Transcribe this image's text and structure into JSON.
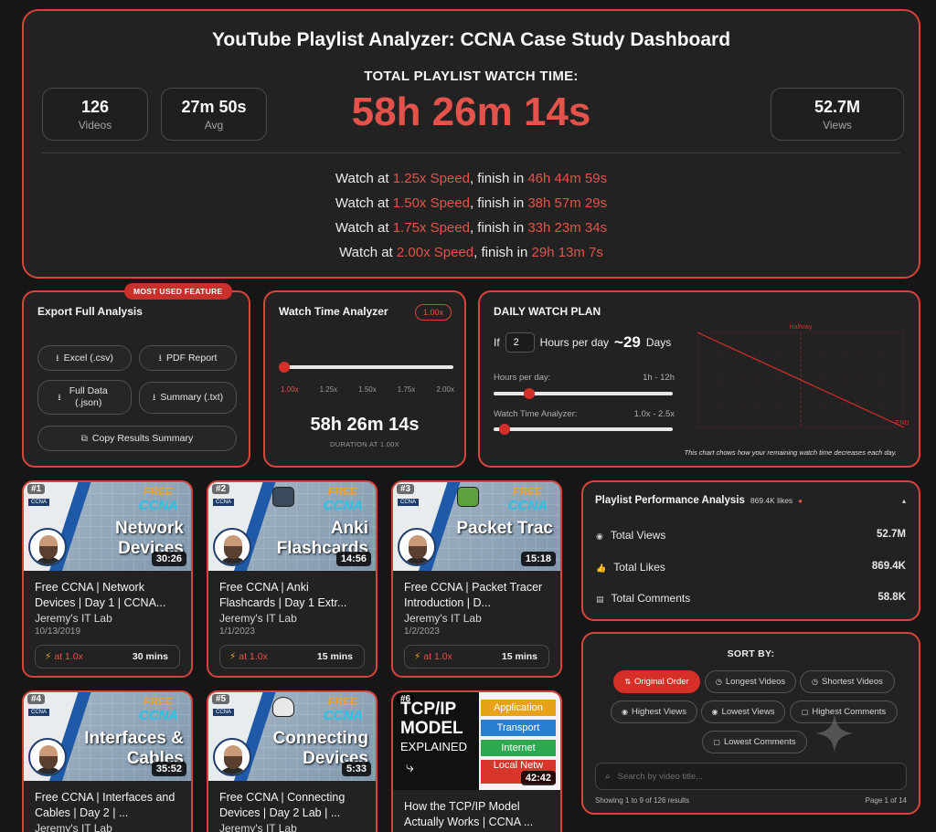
{
  "hero": {
    "title": "YouTube Playlist Analyzer: CCNA Case Study Dashboard",
    "subtitle": "TOTAL PLAYLIST WATCH TIME:",
    "total": "58h 26m 14s",
    "stats": [
      {
        "value": "126",
        "label": "Videos"
      },
      {
        "value": "27m 50s",
        "label": "Avg"
      },
      {
        "value": "52.7M",
        "label": "Views"
      }
    ],
    "speed_lines": [
      {
        "prefix": "Watch at ",
        "speed": "1.25x Speed",
        "mid": ", finish in ",
        "time": "46h 44m 59s"
      },
      {
        "prefix": "Watch at ",
        "speed": "1.50x Speed",
        "mid": ", finish in ",
        "time": "38h 57m 29s"
      },
      {
        "prefix": "Watch at ",
        "speed": "1.75x Speed",
        "mid": ", finish in ",
        "time": "33h 23m 34s"
      },
      {
        "prefix": "Watch at ",
        "speed": "2.00x Speed",
        "mid": ", finish in ",
        "time": "29h 13m 7s"
      }
    ],
    "accent": "#e4534b"
  },
  "export": {
    "badge": "MOST USED FEATURE",
    "title": "Export Full Analysis",
    "buttons": {
      "excel": "Excel (.csv)",
      "pdf": "PDF Report",
      "json": "Full Data (.json)",
      "summary": "Summary (.txt)",
      "copy": "Copy Results Summary"
    }
  },
  "analyzer": {
    "title": "Watch Time Analyzer",
    "speed_pill": "1.00x",
    "ticks": [
      "1.00x",
      "1.25x",
      "1.50x",
      "1.75x",
      "2.00x"
    ],
    "time": "58h 26m 14s",
    "duration_label": "DURATION AT 1.00X",
    "slider_fraction": 0
  },
  "plan": {
    "title": "DAILY WATCH PLAN",
    "if_label": "If",
    "hours_value": "2",
    "hours_label": "Hours per day",
    "days_value": "~29",
    "days_label": "Days",
    "hours_slider_label": "Hours per day:",
    "hours_slider_range": "1h - 12h",
    "hours_slider_fraction": 0.1,
    "speed_slider_label": "Watch Time Analyzer:",
    "speed_slider_range": "1.0x - 2.5x",
    "speed_slider_fraction": 0.0,
    "chart_halfway": "Halfway",
    "chart_end": "END",
    "footnote": "This chart chows how your remaining watch time decreases each day."
  },
  "chart_data": {
    "type": "line",
    "x": [
      0,
      29
    ],
    "values": [
      100,
      0
    ],
    "annotations": [
      "Halfway",
      "END"
    ]
  },
  "videos": [
    {
      "rank": "#1",
      "tag": "CCNA",
      "free": "FREE",
      "ccna": "CCNA",
      "thumb_title": "Network Devices",
      "duration": "30:26",
      "title": "Free CCNA | Network Devices | Day 1 | CCNA...",
      "channel": "Jeremy's IT Lab",
      "date": "10/13/2019",
      "speed": "at 1.0x",
      "mins": "30 mins"
    },
    {
      "rank": "#2",
      "tag": "CCNA",
      "free": "FREE",
      "ccna": "CCNA",
      "thumb_title": "Anki Flashcards",
      "duration": "14:56",
      "title": "Free CCNA | Anki Flashcards | Day 1 Extr...",
      "channel": "Jeremy's IT Lab",
      "date": "1/1/2023",
      "speed": "at 1.0x",
      "mins": "15 mins"
    },
    {
      "rank": "#3",
      "tag": "CCNA",
      "free": "FREE",
      "ccna": "CCNA",
      "thumb_title": "Packet Trac",
      "duration": "15:18",
      "title": "Free CCNA | Packet Tracer Introduction | D...",
      "channel": "Jeremy's IT Lab",
      "date": "1/2/2023",
      "speed": "at 1.0x",
      "mins": "15 mins"
    },
    {
      "rank": "#4",
      "tag": "CCNA",
      "free": "FREE",
      "ccna": "CCNA",
      "thumb_title": "Interfaces & Cables",
      "duration": "35:52",
      "title": "Free CCNA | Interfaces and Cables | Day 2 | ...",
      "channel": "Jeremy's IT Lab"
    },
    {
      "rank": "#5",
      "tag": "CCNA",
      "free": "FREE",
      "ccna": "CCNA",
      "thumb_title": "Connecting Devices",
      "duration": "5:33",
      "title": "Free CCNA | Connecting Devices | Day 2 Lab | ...",
      "channel": "Jeremy's IT Lab"
    },
    {
      "rank": "#6",
      "thumb_big": "TCP/IP MODEL",
      "thumb_exp": "EXPLAINED",
      "layers": [
        "Application",
        "Transport",
        "Internet",
        "Local Netw"
      ],
      "duration": "42:42",
      "title": "How the TCP/IP Model Actually Works | CCNA ..."
    }
  ],
  "performance": {
    "title": "Playlist Performance Analysis",
    "likes_note": "869.4K likes",
    "rows": [
      {
        "icon": "eye-icon",
        "label": "Total Views",
        "value": "52.7M"
      },
      {
        "icon": "thumbs-up-icon",
        "label": "Total Likes",
        "value": "869.4K"
      },
      {
        "icon": "comment-icon",
        "label": "Total Comments",
        "value": "58.8K"
      }
    ]
  },
  "sort": {
    "title": "SORT BY:",
    "options": [
      "Original Order",
      "Longest Videos",
      "Shortest Videos",
      "Highest Views",
      "Lowest Views",
      "Highest Comments",
      "Lowest Comments"
    ],
    "search_placeholder": "Search by video title...",
    "showing": "Showing 1 to 9 of 126 results",
    "page": "Page 1 of 14"
  }
}
